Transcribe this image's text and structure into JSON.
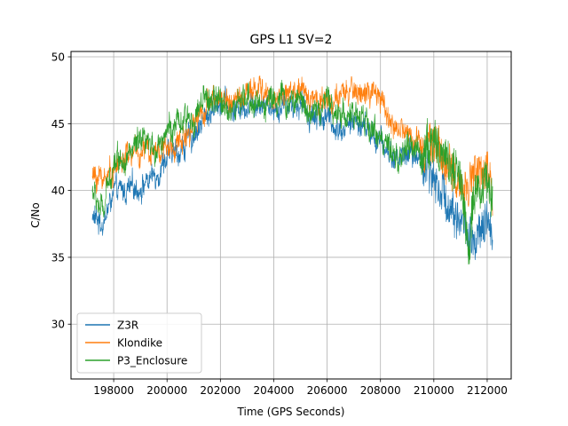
{
  "chart_data": {
    "type": "line",
    "title": "GPS L1 SV=2",
    "xlabel": "Time (GPS Seconds)",
    "ylabel": "C/No",
    "xlim": [
      196400,
      212900
    ],
    "ylim": [
      25.9,
      50.4
    ],
    "grid": true,
    "legend_position": "lower-left",
    "x_ticks": [
      198000,
      200000,
      202000,
      204000,
      206000,
      208000,
      210000,
      212000
    ],
    "x_tick_labels": [
      "198000",
      "200000",
      "202000",
      "204000",
      "206000",
      "208000",
      "210000",
      "212000"
    ],
    "y_ticks": [
      30,
      35,
      40,
      45,
      50
    ],
    "y_tick_labels": [
      "30",
      "35",
      "40",
      "45",
      "50"
    ],
    "x_start": 197200,
    "x_end": 212200,
    "series": [
      {
        "name": "Z3R",
        "color": "#1f77b4",
        "noise": 0.9,
        "anchors": [
          [
            197200,
            38.0
          ],
          [
            197600,
            37.6
          ],
          [
            198000,
            39.8
          ],
          [
            198500,
            40.0
          ],
          [
            199000,
            40.3
          ],
          [
            199500,
            41.0
          ],
          [
            200000,
            42.5
          ],
          [
            200500,
            43.0
          ],
          [
            201000,
            44.2
          ],
          [
            201500,
            45.6
          ],
          [
            202000,
            46.8
          ],
          [
            202500,
            46.0
          ],
          [
            203000,
            46.5
          ],
          [
            203500,
            46.8
          ],
          [
            204000,
            46.2
          ],
          [
            204500,
            46.6
          ],
          [
            205000,
            46.3
          ],
          [
            205500,
            45.6
          ],
          [
            206000,
            45.4
          ],
          [
            206500,
            44.6
          ],
          [
            207000,
            45.2
          ],
          [
            207500,
            44.6
          ],
          [
            208000,
            43.6
          ],
          [
            208500,
            42.4
          ],
          [
            209000,
            42.8
          ],
          [
            209500,
            42.5
          ],
          [
            210000,
            41.0
          ],
          [
            210500,
            39.2
          ],
          [
            211000,
            37.8
          ],
          [
            211500,
            35.8
          ],
          [
            212000,
            37.5
          ],
          [
            212200,
            37.0
          ]
        ]
      },
      {
        "name": "Klondike",
        "color": "#ff7f0e",
        "noise": 0.9,
        "anchors": [
          [
            197200,
            41.0
          ],
          [
            197600,
            41.0
          ],
          [
            198000,
            41.6
          ],
          [
            198500,
            42.6
          ],
          [
            199000,
            42.8
          ],
          [
            199500,
            43.2
          ],
          [
            200000,
            43.0
          ],
          [
            200500,
            43.6
          ],
          [
            201000,
            45.2
          ],
          [
            201500,
            46.4
          ],
          [
            202000,
            47.0
          ],
          [
            202500,
            46.6
          ],
          [
            203000,
            47.2
          ],
          [
            203500,
            47.6
          ],
          [
            204000,
            46.8
          ],
          [
            204500,
            47.4
          ],
          [
            205000,
            47.2
          ],
          [
            205500,
            47.0
          ],
          [
            206000,
            46.8
          ],
          [
            206500,
            46.8
          ],
          [
            207000,
            47.6
          ],
          [
            207500,
            47.2
          ],
          [
            208000,
            46.8
          ],
          [
            208500,
            44.8
          ],
          [
            209000,
            44.2
          ],
          [
            209500,
            43.6
          ],
          [
            210000,
            43.8
          ],
          [
            210500,
            42.0
          ],
          [
            211000,
            40.2
          ],
          [
            211500,
            41.0
          ],
          [
            212000,
            41.2
          ],
          [
            212200,
            40.4
          ]
        ]
      },
      {
        "name": "P3_Enclosure",
        "color": "#2ca02c",
        "noise": 1.0,
        "anchors": [
          [
            197200,
            40.0
          ],
          [
            197600,
            38.2
          ],
          [
            198000,
            42.4
          ],
          [
            198500,
            42.6
          ],
          [
            199000,
            43.4
          ],
          [
            199500,
            43.0
          ],
          [
            200000,
            44.6
          ],
          [
            200500,
            44.8
          ],
          [
            201000,
            45.6
          ],
          [
            201500,
            46.8
          ],
          [
            202000,
            46.6
          ],
          [
            202500,
            46.0
          ],
          [
            203000,
            46.8
          ],
          [
            203500,
            46.4
          ],
          [
            204000,
            47.0
          ],
          [
            204500,
            46.6
          ],
          [
            205000,
            46.8
          ],
          [
            205500,
            45.8
          ],
          [
            206000,
            46.6
          ],
          [
            206500,
            45.8
          ],
          [
            207000,
            45.6
          ],
          [
            207500,
            45.0
          ],
          [
            208000,
            44.2
          ],
          [
            208500,
            42.0
          ],
          [
            209000,
            43.2
          ],
          [
            209500,
            42.8
          ],
          [
            210000,
            43.6
          ],
          [
            210500,
            42.6
          ],
          [
            211000,
            40.8
          ],
          [
            211300,
            35.0
          ],
          [
            211500,
            40.2
          ],
          [
            212000,
            40.6
          ],
          [
            212200,
            39.5
          ]
        ]
      }
    ]
  }
}
